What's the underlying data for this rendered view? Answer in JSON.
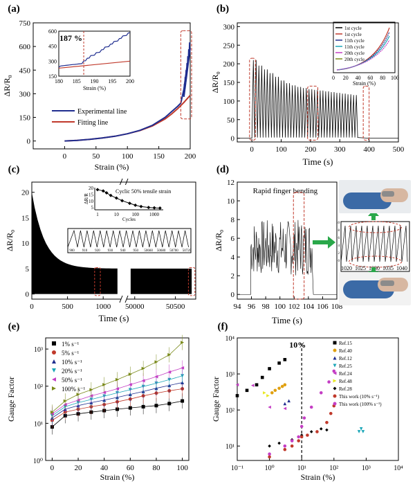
{
  "colors": {
    "blue": "#1f2d8f",
    "red": "#c0392b",
    "dashed_box": "#c0392b",
    "green": "#2aa84a",
    "black": "#000000",
    "magenta": "#c43ec4"
  },
  "chart_data": [
    {
      "panel": "(a)",
      "type": "line",
      "xlabel": "Strain (%)",
      "ylabel": "ΔR/R",
      "xlim": [
        -50,
        200
      ],
      "ylim": [
        -50,
        750
      ],
      "xticks": [
        0,
        50,
        100,
        150,
        200
      ],
      "yticks": [
        0,
        150,
        300,
        450,
        600,
        750
      ],
      "series": [
        {
          "name": "Experimental line",
          "x": [
            0,
            20,
            40,
            60,
            80,
            100,
            120,
            140,
            160,
            170,
            180,
            185,
            190,
            195,
            200
          ],
          "y": [
            0,
            4,
            10,
            19,
            30,
            46,
            68,
            100,
            150,
            185,
            220,
            240,
            330,
            480,
            590
          ]
        },
        {
          "name": "Fitting line",
          "x": [
            0,
            20,
            40,
            60,
            80,
            100,
            120,
            140,
            160,
            170,
            180,
            185,
            190,
            195,
            200
          ],
          "y": [
            0,
            4,
            10,
            19,
            30,
            46,
            66,
            96,
            140,
            170,
            205,
            225,
            245,
            268,
            290
          ]
        }
      ],
      "inset": {
        "annotation": "187 %",
        "xlabel": "Strain (%)",
        "xlim": [
          180,
          200
        ],
        "ylim": [
          150,
          600
        ],
        "xticks": [
          180,
          185,
          190,
          195,
          200
        ],
        "yticks": [
          150,
          300,
          450,
          600
        ]
      }
    },
    {
      "panel": "(b)",
      "type": "line",
      "xlabel": "Time (s)",
      "ylabel": "ΔR/R",
      "xlim": [
        -50,
        500
      ],
      "ylim": [
        -10,
        310
      ],
      "xticks": [
        0,
        100,
        200,
        300,
        400,
        500
      ],
      "yticks": [
        0,
        50,
        100,
        150,
        200,
        250,
        300
      ],
      "series": [
        {
          "name": "cyclic response",
          "x": [
            0,
            20,
            40,
            60,
            80,
            100,
            120,
            140,
            160,
            180,
            200,
            220,
            240,
            260,
            280,
            300,
            320,
            340,
            360,
            380,
            395
          ],
          "y": [
            0,
            210,
            195,
            185,
            175,
            165,
            155,
            148,
            142,
            138,
            135,
            132,
            130,
            128,
            126,
            124,
            122,
            120,
            118,
            116,
            0
          ]
        }
      ],
      "inset": {
        "xlabel": "Strain (%)",
        "xticks": [
          0,
          20,
          40,
          60,
          80,
          100
        ],
        "legend": [
          "1st cycle",
          "1st cycle",
          "11th cycle",
          "11th cycle",
          "20th cycle",
          "20th cycle"
        ]
      }
    },
    {
      "panel": "(c)",
      "type": "area",
      "xlabel": "Time (s)",
      "ylabel": "ΔR/R",
      "xlim_left": [
        0,
        1250
      ],
      "xlim_right": [
        49900,
        50750
      ],
      "ylim": [
        -1,
        22
      ],
      "xticks_left": [
        0,
        500,
        1000
      ],
      "xticks_right": [
        50000,
        50500
      ],
      "yticks": [
        0,
        5,
        10,
        15,
        20
      ],
      "inset_top": {
        "title": "Cyclic 50% tensile strain",
        "xlabel": "Cycles",
        "ylabel": "ΔR/R",
        "x": [
          1,
          2,
          3,
          5,
          10,
          20,
          50,
          100,
          200,
          500,
          1000,
          2000
        ],
        "y": [
          18.5,
          17.5,
          16,
          14,
          12,
          10,
          8,
          6.5,
          5.5,
          4.8,
          4.5,
          4.3
        ],
        "xticks": [
          "1",
          "10",
          "100",
          "1000"
        ],
        "yticks": [
          5,
          10,
          15,
          20
        ]
      },
      "inset_mid": {
        "xticks": [
          "900",
          "910",
          "920",
          "930",
          "940",
          "950",
          "50660",
          "50680",
          "50700",
          "50720"
        ]
      }
    },
    {
      "panel": "(d)",
      "type": "line",
      "xlabel": "Time (s)",
      "ylabel": "ΔR/R",
      "xlim": [
        94,
        108
      ],
      "ylim": [
        -0.5,
        12
      ],
      "xticks": [
        94,
        96,
        98,
        100,
        102,
        104,
        106,
        108
      ],
      "yticks": [
        0,
        2,
        4,
        6,
        8,
        10,
        12
      ],
      "annotation": "Rapid finger bending",
      "inset": {
        "xticks": [
          1020,
          1025,
          1030,
          1035,
          1040
        ],
        "yticks": [
          0,
          2,
          4,
          6,
          8,
          10
        ]
      }
    },
    {
      "panel": "(e)",
      "type": "scatter",
      "xlabel": "Strain (%)",
      "ylabel": "Gauge Factor",
      "xlim": [
        -5,
        105
      ],
      "ylim_log": [
        0,
        3.3
      ],
      "xticks": [
        0,
        20,
        40,
        60,
        80,
        100
      ],
      "yticks": [
        "10⁰",
        "10¹",
        "10²",
        "10³"
      ],
      "series": [
        {
          "name": "1% s⁻¹",
          "color": "#000000",
          "marker": "square",
          "x": [
            0,
            10,
            20,
            30,
            40,
            50,
            60,
            70,
            80,
            90,
            100
          ],
          "y": [
            8,
            16,
            18,
            20,
            22,
            24,
            26,
            28,
            30,
            34,
            40
          ]
        },
        {
          "name": "5% s⁻¹",
          "color": "#c0392b",
          "marker": "circle",
          "x": [
            0,
            10,
            20,
            30,
            40,
            50,
            60,
            70,
            80,
            90,
            100
          ],
          "y": [
            12,
            20,
            24,
            28,
            32,
            38,
            45,
            55,
            65,
            75,
            85
          ]
        },
        {
          "name": "10% s⁻¹",
          "color": "#1f2d8f",
          "marker": "triangle-up",
          "x": [
            0,
            10,
            20,
            30,
            40,
            50,
            60,
            70,
            80,
            90,
            100
          ],
          "y": [
            14,
            24,
            30,
            36,
            42,
            50,
            60,
            72,
            88,
            105,
            125
          ]
        },
        {
          "name": "20% s⁻¹",
          "color": "#1aa6b7",
          "marker": "triangle-down",
          "x": [
            0,
            10,
            20,
            30,
            40,
            50,
            60,
            70,
            80,
            90,
            100
          ],
          "y": [
            16,
            28,
            36,
            44,
            54,
            66,
            80,
            98,
            120,
            150,
            190
          ]
        },
        {
          "name": "50% s⁻¹",
          "color": "#c43ec4",
          "marker": "triangle-left",
          "x": [
            0,
            10,
            20,
            30,
            40,
            50,
            60,
            70,
            80,
            90,
            100
          ],
          "y": [
            18,
            32,
            42,
            55,
            68,
            85,
            110,
            140,
            180,
            240,
            310
          ]
        },
        {
          "name": "100% s⁻¹",
          "color": "#7a8a1a",
          "marker": "triangle-right",
          "x": [
            0,
            10,
            20,
            30,
            40,
            50,
            60,
            70,
            80,
            90,
            100
          ],
          "y": [
            20,
            40,
            60,
            80,
            110,
            150,
            210,
            300,
            450,
            700,
            1500
          ]
        }
      ]
    },
    {
      "panel": "(f)",
      "type": "scatter",
      "xlabel": "Strain (%)",
      "ylabel": "Gauge Factor",
      "xlim_log": [
        -1,
        4
      ],
      "ylim_log": [
        0.6,
        4
      ],
      "xticks": [
        "10⁻¹",
        "10⁰",
        "10¹",
        "10²",
        "10³",
        "10⁴"
      ],
      "yticks": [
        "10¹",
        "10²",
        "10³",
        "10⁴"
      ],
      "annotation": "10%",
      "series": [
        {
          "name": "Ref.15",
          "color": "#000000",
          "marker": "square"
        },
        {
          "name": "Ref.40",
          "color": "#e0a010",
          "marker": "circle"
        },
        {
          "name": "Ref.12",
          "color": "#1f2d8f",
          "marker": "triangle-up"
        },
        {
          "name": "Ref.25",
          "color": "#1aa6b7",
          "marker": "triangle-down"
        },
        {
          "name": "Ref.24",
          "color": "#c43ec4",
          "marker": "triangle-left"
        },
        {
          "name": "Ref.48",
          "color": "#e8e820",
          "marker": "triangle-right"
        },
        {
          "name": "Ref.28",
          "color": "#000000",
          "marker": "diamond"
        },
        {
          "name": "This work (10% s⁻¹)",
          "color": "#c0392b",
          "marker": "circle"
        },
        {
          "name": "This work (100% s⁻¹)",
          "color": "#c43ec4",
          "marker": "circle"
        }
      ]
    }
  ]
}
